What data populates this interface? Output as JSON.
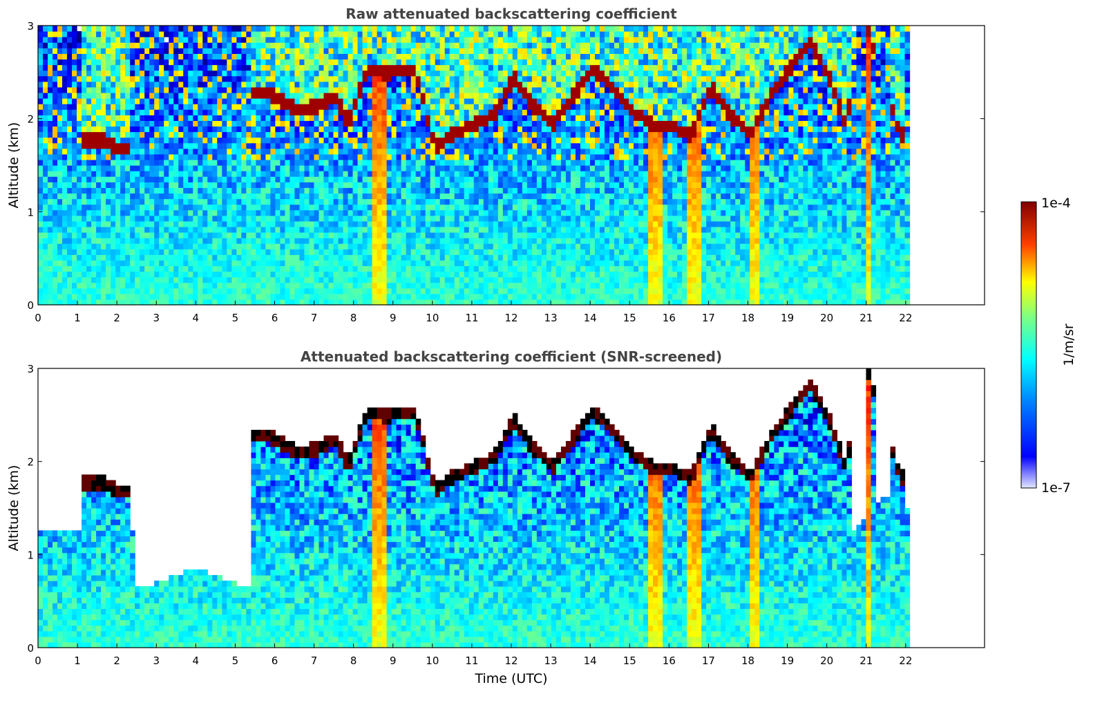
{
  "chart_data": [
    {
      "type": "heatmap",
      "title": "Raw attenuated backscattering coefficient",
      "xlabel": "",
      "ylabel": "Altitude (km)",
      "xlim": [
        0,
        24
      ],
      "ylim": [
        0,
        3
      ],
      "xticks": [
        "0",
        "1",
        "2",
        "3",
        "4",
        "5",
        "6",
        "7",
        "8",
        "9",
        "10",
        "11",
        "12",
        "13",
        "14",
        "15",
        "16",
        "17",
        "18",
        "19",
        "20",
        "21",
        "22"
      ],
      "yticks": [
        "0",
        "1",
        "2",
        "3"
      ],
      "data_end_time": 22.1,
      "screened": false,
      "cloud_layers": [
        {
          "t": 1.2,
          "alt": 1.72
        },
        {
          "t": 1.6,
          "alt": 1.72
        },
        {
          "t": 2.2,
          "alt": 1.62
        },
        {
          "t": 5.5,
          "alt": 2.25
        },
        {
          "t": 6.0,
          "alt": 2.2
        },
        {
          "t": 6.5,
          "alt": 2.05
        },
        {
          "t": 7.0,
          "alt": 2.1
        },
        {
          "t": 7.5,
          "alt": 2.2
        },
        {
          "t": 7.8,
          "alt": 1.9
        },
        {
          "t": 8.3,
          "alt": 2.5
        },
        {
          "t": 8.8,
          "alt": 2.45
        },
        {
          "t": 9.5,
          "alt": 2.5
        },
        {
          "t": 10.0,
          "alt": 1.65
        },
        {
          "t": 10.5,
          "alt": 1.8
        },
        {
          "t": 11.5,
          "alt": 2.0
        },
        {
          "t": 12.0,
          "alt": 2.4
        },
        {
          "t": 12.5,
          "alt": 2.1
        },
        {
          "t": 13.0,
          "alt": 1.9
        },
        {
          "t": 13.5,
          "alt": 2.2
        },
        {
          "t": 14.0,
          "alt": 2.5
        },
        {
          "t": 14.5,
          "alt": 2.3
        },
        {
          "t": 15.0,
          "alt": 2.05
        },
        {
          "t": 15.5,
          "alt": 1.9
        },
        {
          "t": 16.0,
          "alt": 1.88
        },
        {
          "t": 16.5,
          "alt": 1.78
        },
        {
          "t": 17.0,
          "alt": 2.3
        },
        {
          "t": 17.5,
          "alt": 2.0
        },
        {
          "t": 18.0,
          "alt": 1.8
        },
        {
          "t": 18.5,
          "alt": 2.2
        },
        {
          "t": 19.0,
          "alt": 2.5
        },
        {
          "t": 19.5,
          "alt": 2.8
        },
        {
          "t": 20.0,
          "alt": 2.4
        },
        {
          "t": 20.4,
          "alt": 1.92
        },
        {
          "t": 21.0,
          "alt": 2.9
        },
        {
          "t": 21.8,
          "alt": 1.8
        }
      ]
    },
    {
      "type": "heatmap",
      "title": "Attenuated backscattering coefficient (SNR-screened)",
      "xlabel": "Time (UTC)",
      "ylabel": "Altitude (km)",
      "xlim": [
        0,
        24
      ],
      "ylim": [
        0,
        3
      ],
      "xticks": [
        "0",
        "1",
        "2",
        "3",
        "4",
        "5",
        "6",
        "7",
        "8",
        "9",
        "10",
        "11",
        "12",
        "13",
        "14",
        "15",
        "16",
        "17",
        "18",
        "19",
        "20",
        "21",
        "22"
      ],
      "yticks": [
        "0",
        "1",
        "2",
        "3"
      ],
      "data_end_time": 22.1,
      "screened": true,
      "cloud_layers": [
        {
          "t": 1.2,
          "alt": 1.72
        },
        {
          "t": 1.6,
          "alt": 1.72
        },
        {
          "t": 2.2,
          "alt": 1.62
        },
        {
          "t": 5.5,
          "alt": 2.25
        },
        {
          "t": 6.0,
          "alt": 2.2
        },
        {
          "t": 6.5,
          "alt": 2.05
        },
        {
          "t": 7.0,
          "alt": 2.1
        },
        {
          "t": 7.5,
          "alt": 2.2
        },
        {
          "t": 7.8,
          "alt": 1.9
        },
        {
          "t": 8.3,
          "alt": 2.5
        },
        {
          "t": 8.8,
          "alt": 2.45
        },
        {
          "t": 9.5,
          "alt": 2.5
        },
        {
          "t": 10.0,
          "alt": 1.65
        },
        {
          "t": 10.5,
          "alt": 1.8
        },
        {
          "t": 11.5,
          "alt": 2.0
        },
        {
          "t": 12.0,
          "alt": 2.4
        },
        {
          "t": 12.5,
          "alt": 2.1
        },
        {
          "t": 13.0,
          "alt": 1.9
        },
        {
          "t": 13.5,
          "alt": 2.2
        },
        {
          "t": 14.0,
          "alt": 2.5
        },
        {
          "t": 14.5,
          "alt": 2.3
        },
        {
          "t": 15.0,
          "alt": 2.05
        },
        {
          "t": 15.5,
          "alt": 1.9
        },
        {
          "t": 16.0,
          "alt": 1.88
        },
        {
          "t": 16.5,
          "alt": 1.78
        },
        {
          "t": 17.0,
          "alt": 2.3
        },
        {
          "t": 17.5,
          "alt": 2.0
        },
        {
          "t": 18.0,
          "alt": 1.8
        },
        {
          "t": 18.5,
          "alt": 2.2
        },
        {
          "t": 19.0,
          "alt": 2.5
        },
        {
          "t": 19.5,
          "alt": 2.8
        },
        {
          "t": 20.0,
          "alt": 2.4
        },
        {
          "t": 20.4,
          "alt": 1.92
        },
        {
          "t": 21.0,
          "alt": 2.9
        },
        {
          "t": 21.8,
          "alt": 1.8
        }
      ]
    }
  ],
  "colorbar": {
    "label": "1/m/sr",
    "max_label": "1e-4",
    "min_label": "1e-7",
    "colormap": "jet",
    "scale": "log"
  }
}
